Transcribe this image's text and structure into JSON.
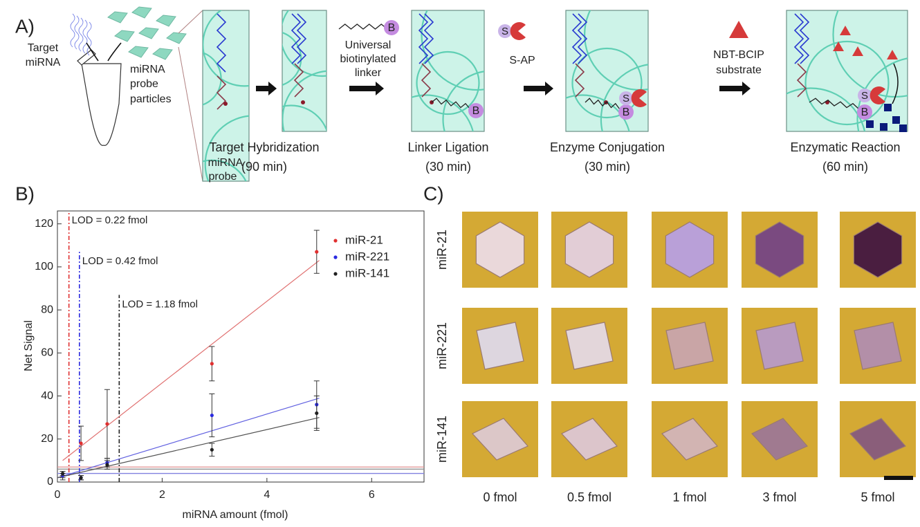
{
  "panel_a": {
    "label": "A)",
    "target_mirna": [
      "Target",
      "miRNA"
    ],
    "probe_particles": [
      "miRNA",
      "probe",
      "particles"
    ],
    "probe": [
      "miRNA",
      "probe"
    ],
    "linker": [
      "Universal",
      "biotinylated",
      "linker"
    ],
    "sap": "S-AP",
    "substrate": [
      "NBT-BCIP",
      "substrate"
    ],
    "biotin": "B",
    "streptavidin": "S",
    "steps": [
      {
        "name": "Target Hybridization",
        "time": "(90 min)"
      },
      {
        "name": "Linker Ligation",
        "time": "(30 min)"
      },
      {
        "name": "Enzyme Conjugation",
        "time": "(30 min)"
      },
      {
        "name": "Enzymatic Reaction",
        "time": "(60 min)"
      }
    ]
  },
  "chart_data": {
    "type": "scatter",
    "panel_label": "B)",
    "xlabel": "miRNA amount (fmol)",
    "ylabel": "Net Signal",
    "x": [
      0.1,
      0.45,
      0.95,
      2.95,
      4.95
    ],
    "series": [
      {
        "name": "miR-21",
        "color": "#e03030",
        "values": [
          3,
          18,
          27,
          55,
          107
        ],
        "errors": [
          2,
          8,
          16,
          8,
          10
        ]
      },
      {
        "name": "miR-221",
        "color": "#2a2ae0",
        "values": [
          3,
          2,
          9,
          31,
          36
        ],
        "errors": [
          1,
          1,
          2,
          10,
          11
        ]
      },
      {
        "name": "miR-141",
        "color": "#202020",
        "values": [
          4,
          2,
          8,
          15,
          32
        ],
        "errors": [
          1,
          1,
          2,
          3,
          8
        ]
      }
    ],
    "fit_lines": [
      {
        "color": "#e07070",
        "x": [
          0.1,
          5
        ],
        "values": [
          10,
          103
        ]
      },
      {
        "color": "#6060e0",
        "x": [
          0,
          5
        ],
        "values": [
          2,
          39
        ]
      },
      {
        "color": "#505050",
        "x": [
          0,
          5
        ],
        "values": [
          2,
          30
        ]
      }
    ],
    "threshold_lines": [
      {
        "color": "#e09090",
        "value": 7
      },
      {
        "color": "#909090",
        "value": 6
      },
      {
        "color": "#8080e0",
        "value": 4
      }
    ],
    "lod_lines": [
      {
        "label": "LOD = 0.22 fmol",
        "x": 0.22,
        "ymax": 126,
        "color": "#e03030"
      },
      {
        "label": "LOD = 0.42 fmol",
        "x": 0.42,
        "ymax": 107,
        "color": "#2a2ae0"
      },
      {
        "label": "LOD = 1.18 fmol",
        "x": 1.18,
        "ymax": 87,
        "color": "#202020"
      }
    ],
    "xlim": [
      0,
      7
    ],
    "ylim": [
      0,
      126
    ],
    "xticks": [
      0,
      2,
      4,
      6
    ],
    "yticks": [
      0,
      20,
      40,
      60,
      80,
      100,
      120
    ],
    "legend": "upper right"
  },
  "panel_c": {
    "label": "C)",
    "rows": [
      {
        "name": "miR-21",
        "color": "#c03030"
      },
      {
        "name": "miR-221",
        "color": "#2a2ad0"
      },
      {
        "name": "miR-141",
        "color": "#202020"
      }
    ],
    "columns": [
      "0 fmol",
      "0.5 fmol",
      "1 fmol",
      "3 fmol",
      "5 fmol"
    ]
  }
}
